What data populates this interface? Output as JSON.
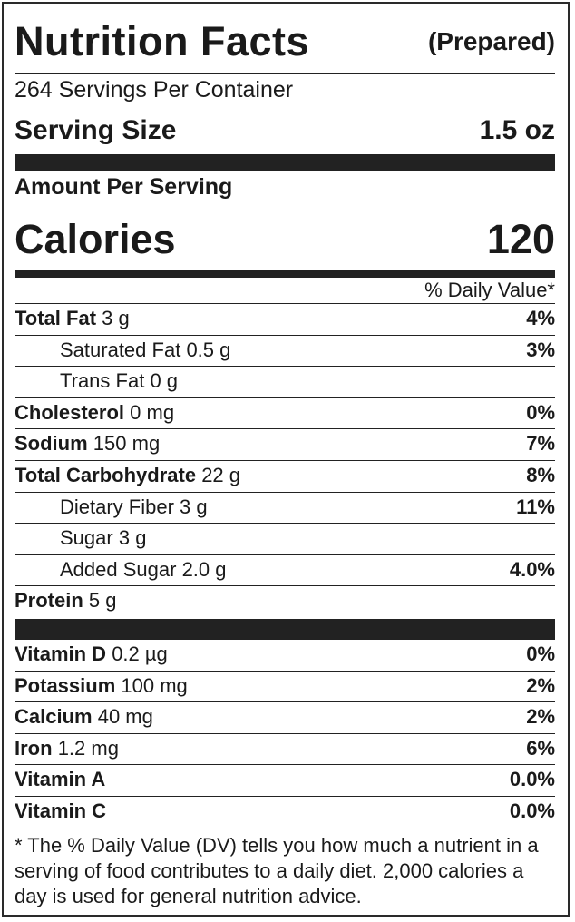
{
  "header": {
    "title": "Nutrition Facts",
    "prepared": "(Prepared)"
  },
  "servings_per_container": "264 Servings Per Container",
  "serving_size": {
    "label": "Serving Size",
    "value": "1.5 oz"
  },
  "amount_per_serving": "Amount Per Serving",
  "calories": {
    "label": "Calories",
    "value": "120"
  },
  "daily_value_header": "% Daily Value*",
  "nutrients": [
    {
      "name": "Total Fat",
      "amount": "3 g",
      "percent": "4%",
      "indent": false
    },
    {
      "name": "Saturated Fat",
      "amount": "0.5 g",
      "percent": "3%",
      "indent": true
    },
    {
      "name": "Trans Fat",
      "amount": "0 g",
      "percent": "",
      "indent": true
    },
    {
      "name": "Cholesterol",
      "amount": "0 mg",
      "percent": "0%",
      "indent": false
    },
    {
      "name": "Sodium",
      "amount": "150 mg",
      "percent": "7%",
      "indent": false
    },
    {
      "name": "Total Carbohydrate",
      "amount": "22 g",
      "percent": "8%",
      "indent": false
    },
    {
      "name": "Dietary Fiber",
      "amount": "3 g",
      "percent": "11%",
      "indent": true
    },
    {
      "name": "Sugar",
      "amount": "3 g",
      "percent": "",
      "indent": true
    },
    {
      "name": "Added Sugar",
      "amount": "2.0 g",
      "percent": "4.0%",
      "indent": true
    },
    {
      "name": "Protein",
      "amount": "5 g",
      "percent": "",
      "indent": false
    }
  ],
  "vitamins": [
    {
      "name": "Vitamin D",
      "amount": "0.2 µg",
      "percent": "0%"
    },
    {
      "name": "Potassium",
      "amount": "100 mg",
      "percent": "2%"
    },
    {
      "name": "Calcium",
      "amount": "40 mg",
      "percent": "2%"
    },
    {
      "name": "Iron",
      "amount": "1.2 mg",
      "percent": "6%"
    },
    {
      "name": "Vitamin A",
      "amount": "",
      "percent": "0.0%"
    },
    {
      "name": "Vitamin C",
      "amount": "",
      "percent": "0.0%"
    }
  ],
  "footnote": "* The % Daily Value (DV) tells you how much a nutrient in a serving of food contributes to a daily diet. 2,000 calories a day is used for general nutrition advice."
}
